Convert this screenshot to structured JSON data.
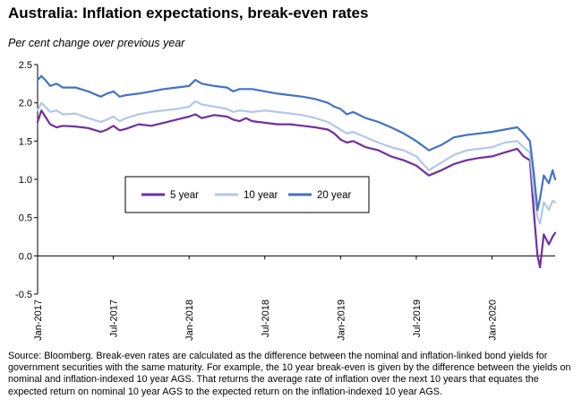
{
  "title": "Australia: Inflation expectations, break-even rates",
  "subtitle": "Per cent change over previous year",
  "source_note": "Source: Bloomberg.  Break-even rates are calculated as the difference between the nominal and inflation-linked bond yields for government securities with the same maturity. For example, the 10 year break-even is given by the difference between the yields on nominal and inflation-indexed 10 year AGS.  That returns the average rate of inflation over the next 10 years that equates the expected return on nominal 10 year AGS to the expected return on the inflation-indexed 10 year AGS.",
  "chart_data": {
    "type": "line",
    "title": "Australia: Inflation expectations, break-even rates",
    "ylabel": "Per cent change over previous year",
    "xlabel": "",
    "ylim": [
      -0.5,
      2.5
    ],
    "yticks": [
      2.5,
      2.0,
      1.5,
      1.0,
      0.5,
      0.0,
      -0.5
    ],
    "ytick_labels": [
      "2.5",
      "2.0",
      "1.5",
      "1.0",
      "0.5",
      "0.0",
      "-0.5"
    ],
    "x_months_range": [
      0,
      41
    ],
    "xticks": [
      {
        "label": "Jan-2017",
        "month": 0
      },
      {
        "label": "Jul-2017",
        "month": 6
      },
      {
        "label": "Jan-2018",
        "month": 12
      },
      {
        "label": "Jul-2018",
        "month": 18
      },
      {
        "label": "Jan-2019",
        "month": 24
      },
      {
        "label": "Jul-2019",
        "month": 30
      },
      {
        "label": "Jan-2020",
        "month": 36
      }
    ],
    "legend_position": "center-left",
    "grid": false,
    "series": [
      {
        "name": "5 year",
        "color": "#7030a0",
        "points": [
          [
            0,
            1.75
          ],
          [
            0.3,
            1.9
          ],
          [
            0.6,
            1.82
          ],
          [
            1,
            1.72
          ],
          [
            1.5,
            1.68
          ],
          [
            2,
            1.7
          ],
          [
            3,
            1.69
          ],
          [
            4,
            1.67
          ],
          [
            5,
            1.62
          ],
          [
            5.5,
            1.65
          ],
          [
            6,
            1.7
          ],
          [
            6.5,
            1.64
          ],
          [
            7,
            1.66
          ],
          [
            8,
            1.72
          ],
          [
            9,
            1.7
          ],
          [
            10,
            1.74
          ],
          [
            11,
            1.78
          ],
          [
            12,
            1.82
          ],
          [
            12.5,
            1.85
          ],
          [
            13,
            1.8
          ],
          [
            14,
            1.84
          ],
          [
            15,
            1.82
          ],
          [
            15.5,
            1.78
          ],
          [
            16,
            1.76
          ],
          [
            16.5,
            1.8
          ],
          [
            17,
            1.76
          ],
          [
            18,
            1.74
          ],
          [
            19,
            1.72
          ],
          [
            20,
            1.72
          ],
          [
            21,
            1.7
          ],
          [
            22,
            1.68
          ],
          [
            23,
            1.65
          ],
          [
            23.5,
            1.6
          ],
          [
            24,
            1.52
          ],
          [
            24.5,
            1.48
          ],
          [
            25,
            1.5
          ],
          [
            26,
            1.42
          ],
          [
            27,
            1.38
          ],
          [
            28,
            1.3
          ],
          [
            29,
            1.25
          ],
          [
            30,
            1.18
          ],
          [
            31,
            1.05
          ],
          [
            32,
            1.12
          ],
          [
            33,
            1.2
          ],
          [
            34,
            1.25
          ],
          [
            35,
            1.28
          ],
          [
            36,
            1.3
          ],
          [
            37,
            1.35
          ],
          [
            38,
            1.4
          ],
          [
            38.5,
            1.3
          ],
          [
            39,
            1.25
          ],
          [
            39.3,
            0.6
          ],
          [
            39.6,
            0.0
          ],
          [
            39.8,
            -0.15
          ],
          [
            40.1,
            0.28
          ],
          [
            40.5,
            0.15
          ],
          [
            40.8,
            0.25
          ],
          [
            41,
            0.3
          ]
        ]
      },
      {
        "name": "10 year",
        "color": "#b4c7e7",
        "points": [
          [
            0,
            1.9
          ],
          [
            0.3,
            2.0
          ],
          [
            0.6,
            1.95
          ],
          [
            1,
            1.88
          ],
          [
            1.5,
            1.9
          ],
          [
            2,
            1.85
          ],
          [
            3,
            1.86
          ],
          [
            4,
            1.8
          ],
          [
            5,
            1.75
          ],
          [
            5.5,
            1.78
          ],
          [
            6,
            1.82
          ],
          [
            6.5,
            1.76
          ],
          [
            7,
            1.8
          ],
          [
            8,
            1.85
          ],
          [
            9,
            1.88
          ],
          [
            10,
            1.9
          ],
          [
            11,
            1.92
          ],
          [
            12,
            1.95
          ],
          [
            12.5,
            2.02
          ],
          [
            13,
            1.98
          ],
          [
            14,
            1.95
          ],
          [
            15,
            1.92
          ],
          [
            15.5,
            1.88
          ],
          [
            16,
            1.9
          ],
          [
            17,
            1.88
          ],
          [
            18,
            1.9
          ],
          [
            19,
            1.88
          ],
          [
            20,
            1.86
          ],
          [
            21,
            1.84
          ],
          [
            22,
            1.8
          ],
          [
            23,
            1.75
          ],
          [
            23.5,
            1.7
          ],
          [
            24,
            1.65
          ],
          [
            24.5,
            1.6
          ],
          [
            25,
            1.62
          ],
          [
            26,
            1.55
          ],
          [
            27,
            1.48
          ],
          [
            28,
            1.42
          ],
          [
            29,
            1.38
          ],
          [
            30,
            1.3
          ],
          [
            31,
            1.12
          ],
          [
            32,
            1.22
          ],
          [
            33,
            1.32
          ],
          [
            34,
            1.38
          ],
          [
            35,
            1.4
          ],
          [
            36,
            1.42
          ],
          [
            37,
            1.48
          ],
          [
            38,
            1.5
          ],
          [
            38.5,
            1.42
          ],
          [
            39,
            1.35
          ],
          [
            39.3,
            0.85
          ],
          [
            39.6,
            0.5
          ],
          [
            39.8,
            0.42
          ],
          [
            40.1,
            0.7
          ],
          [
            40.5,
            0.6
          ],
          [
            40.8,
            0.72
          ],
          [
            41,
            0.7
          ]
        ]
      },
      {
        "name": "20 year",
        "color": "#4472c4",
        "points": [
          [
            0,
            2.3
          ],
          [
            0.3,
            2.35
          ],
          [
            0.6,
            2.3
          ],
          [
            1,
            2.22
          ],
          [
            1.5,
            2.25
          ],
          [
            2,
            2.2
          ],
          [
            3,
            2.2
          ],
          [
            4,
            2.15
          ],
          [
            5,
            2.08
          ],
          [
            5.5,
            2.12
          ],
          [
            6,
            2.15
          ],
          [
            6.5,
            2.08
          ],
          [
            7,
            2.1
          ],
          [
            8,
            2.12
          ],
          [
            9,
            2.15
          ],
          [
            10,
            2.18
          ],
          [
            11,
            2.2
          ],
          [
            12,
            2.22
          ],
          [
            12.5,
            2.3
          ],
          [
            13,
            2.25
          ],
          [
            14,
            2.22
          ],
          [
            15,
            2.2
          ],
          [
            15.5,
            2.15
          ],
          [
            16,
            2.18
          ],
          [
            17,
            2.18
          ],
          [
            18,
            2.15
          ],
          [
            19,
            2.12
          ],
          [
            20,
            2.1
          ],
          [
            21,
            2.08
          ],
          [
            22,
            2.05
          ],
          [
            23,
            2.0
          ],
          [
            23.5,
            1.95
          ],
          [
            24,
            1.92
          ],
          [
            24.5,
            1.85
          ],
          [
            25,
            1.88
          ],
          [
            26,
            1.8
          ],
          [
            27,
            1.75
          ],
          [
            28,
            1.68
          ],
          [
            29,
            1.6
          ],
          [
            30,
            1.5
          ],
          [
            31,
            1.38
          ],
          [
            32,
            1.45
          ],
          [
            33,
            1.55
          ],
          [
            34,
            1.58
          ],
          [
            35,
            1.6
          ],
          [
            36,
            1.62
          ],
          [
            37,
            1.65
          ],
          [
            38,
            1.68
          ],
          [
            38.5,
            1.6
          ],
          [
            39,
            1.5
          ],
          [
            39.3,
            1.1
          ],
          [
            39.6,
            0.6
          ],
          [
            39.8,
            0.75
          ],
          [
            40.1,
            1.05
          ],
          [
            40.5,
            0.95
          ],
          [
            40.8,
            1.12
          ],
          [
            41,
            1.0
          ]
        ]
      }
    ]
  }
}
